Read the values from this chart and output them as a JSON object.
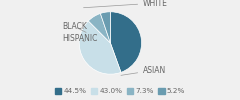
{
  "labels": [
    "ASIAN",
    "WHITE",
    "BLACK",
    "HISPANIC"
  ],
  "values": [
    44.5,
    43.0,
    7.3,
    5.2
  ],
  "colors": [
    "#336e8a",
    "#c8dfe8",
    "#8ab4c4",
    "#6a9cb0"
  ],
  "legend_colors": [
    "#336e8a",
    "#c8dfe8",
    "#8ab4c4",
    "#6a9cb0"
  ],
  "legend_labels": [
    "44.5%",
    "43.0%",
    "7.3%",
    "5.2%"
  ],
  "label_fontsize": 5.5,
  "legend_fontsize": 5.2,
  "bg_color": "#f0f0f0"
}
